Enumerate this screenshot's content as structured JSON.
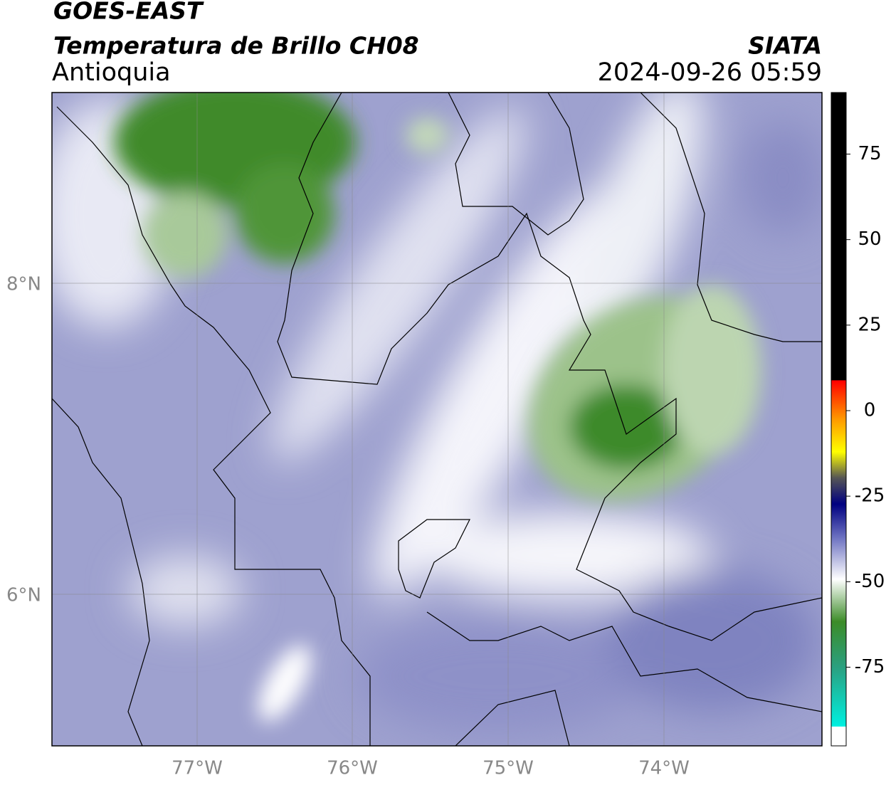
{
  "header": {
    "title": "GOES-EAST",
    "subtitle": "Temperatura de Brillo CH08",
    "region": "Antioquia",
    "agency": "SIATA",
    "datetime": "2024-09-26 05:59"
  },
  "map": {
    "lat_labels": [
      "8°N",
      "6°N"
    ],
    "lon_labels": [
      "77°W",
      "76°W",
      "75°W",
      "74°W"
    ]
  },
  "colorbar": {
    "lim": [
      -98,
      93
    ],
    "ticks": [
      75,
      50,
      25,
      0,
      -25,
      -50,
      -75
    ]
  }
}
